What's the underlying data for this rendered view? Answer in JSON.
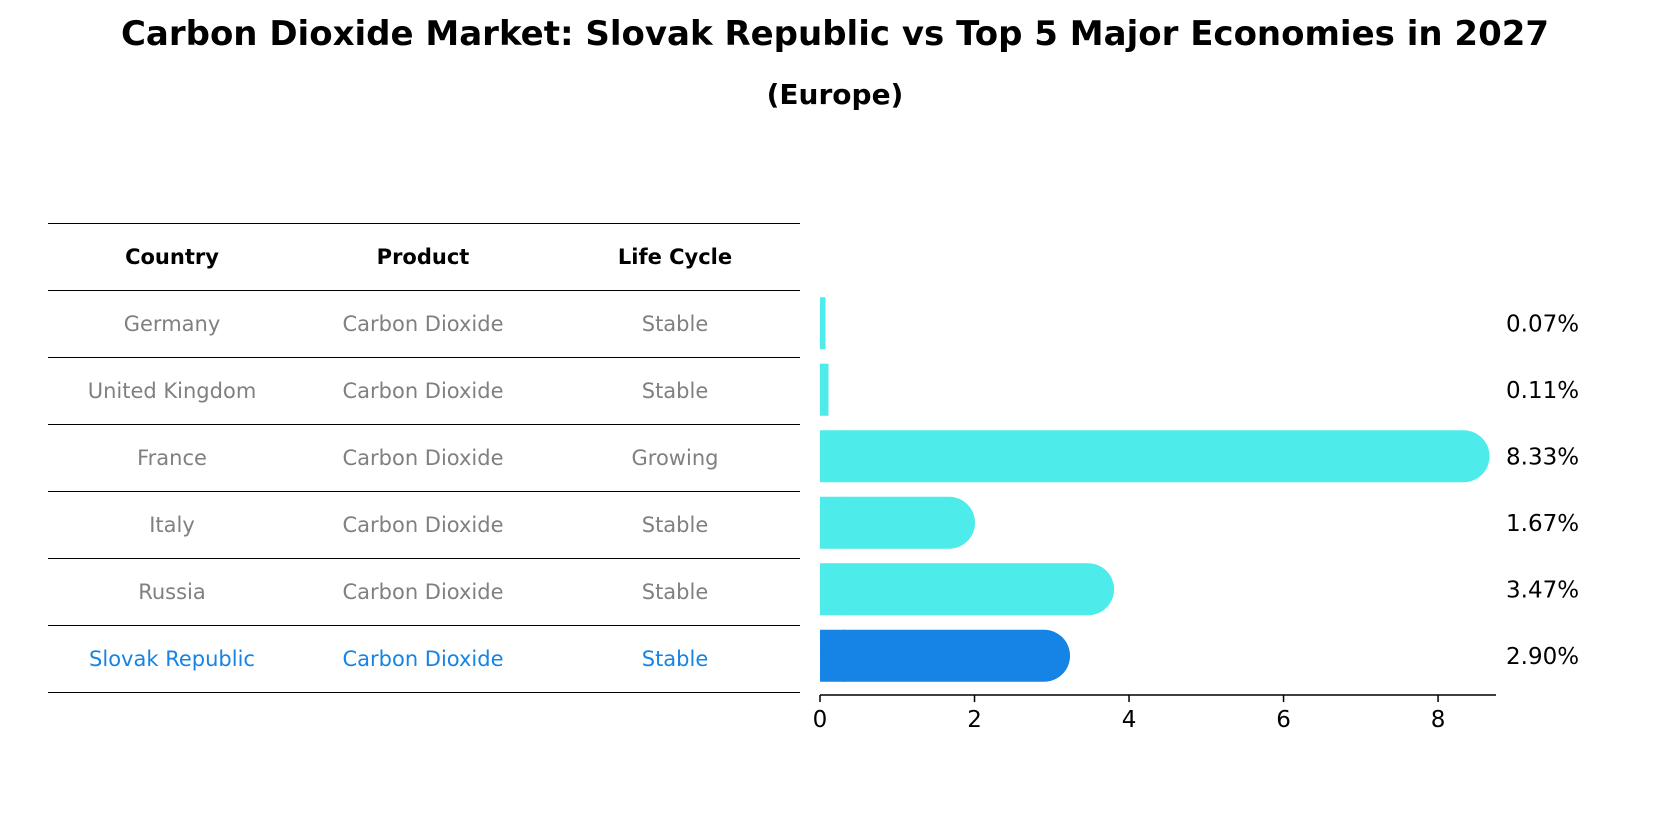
{
  "header": {
    "title": "Carbon Dioxide Market: Slovak Republic vs Top 5 Major Economies in 2027",
    "subtitle": "(Europe)"
  },
  "table": {
    "columns": [
      "Country",
      "Product",
      "Life Cycle"
    ],
    "rows": [
      {
        "country": "Germany",
        "product": "Carbon Dioxide",
        "life_cycle": "Stable"
      },
      {
        "country": "United Kingdom",
        "product": "Carbon Dioxide",
        "life_cycle": "Stable"
      },
      {
        "country": "France",
        "product": "Carbon Dioxide",
        "life_cycle": "Growing"
      },
      {
        "country": "Italy",
        "product": "Carbon Dioxide",
        "life_cycle": "Stable"
      },
      {
        "country": "Russia",
        "product": "Carbon Dioxide",
        "life_cycle": "Stable"
      },
      {
        "country": "Slovak Republic",
        "product": "Carbon Dioxide",
        "life_cycle": "Stable"
      }
    ]
  },
  "colors": {
    "bar": "#4debea",
    "highlight": "#1584e5",
    "muted_text": "#808080"
  },
  "chart_data": {
    "type": "bar",
    "orientation": "horizontal",
    "categories": [
      "Germany",
      "United Kingdom",
      "France",
      "Italy",
      "Russia",
      "Slovak Republic"
    ],
    "values": [
      0.07,
      0.11,
      8.33,
      1.67,
      3.47,
      2.9
    ],
    "value_labels": [
      "0.07%",
      "0.11%",
      "8.33%",
      "1.67%",
      "3.47%",
      "2.90%"
    ],
    "highlight_category": "Slovak Republic",
    "xlim": [
      0,
      8.75
    ],
    "xticks": [
      0,
      2,
      4,
      6,
      8
    ],
    "xtick_labels": [
      "0",
      "2",
      "4",
      "6",
      "8"
    ],
    "xlabel": "",
    "ylabel": ""
  }
}
